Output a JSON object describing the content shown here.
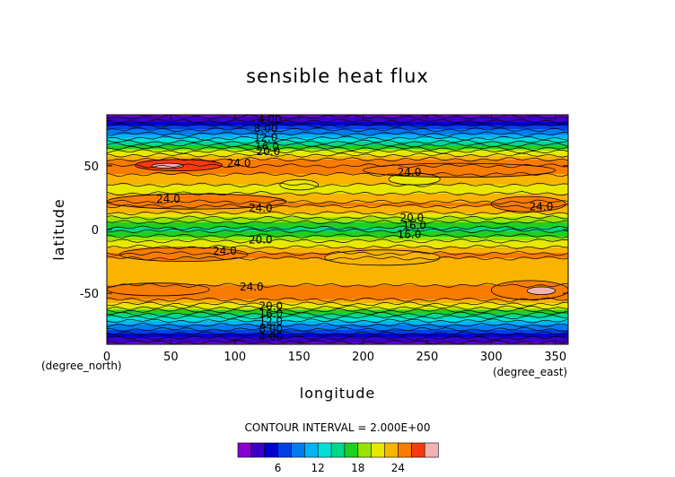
{
  "chart_data": {
    "type": "heatmap",
    "title": "sensible heat flux",
    "xlabel": "longitude",
    "ylabel": "latitude",
    "x_unit": "(degree_east)",
    "y_unit": "(degree_north)",
    "xlim": [
      0,
      360
    ],
    "ylim": [
      -90,
      90
    ],
    "x_ticks": [
      0,
      50,
      100,
      150,
      200,
      250,
      300,
      350
    ],
    "y_ticks": [
      -50,
      0,
      50
    ],
    "contour_interval_text": "CONTOUR INTERVAL = 2.000E+00",
    "colorbar_ticks": [
      6,
      12,
      18,
      24
    ],
    "color_levels": [
      {
        "upper": 2,
        "color": "#8a00d0"
      },
      {
        "upper": 4,
        "color": "#3c00c8"
      },
      {
        "upper": 6,
        "color": "#0000d0"
      },
      {
        "upper": 8,
        "color": "#0040e8"
      },
      {
        "upper": 10,
        "color": "#007cf0"
      },
      {
        "upper": 12,
        "color": "#00b4f4"
      },
      {
        "upper": 14,
        "color": "#00e0d8"
      },
      {
        "upper": 16,
        "color": "#00d88c"
      },
      {
        "upper": 18,
        "color": "#20d020"
      },
      {
        "upper": 20,
        "color": "#98e400"
      },
      {
        "upper": 22,
        "color": "#e8e800"
      },
      {
        "upper": 24,
        "color": "#f8b400"
      },
      {
        "upper": 26,
        "color": "#f87c00"
      },
      {
        "upper": 28,
        "color": "#f83a10"
      },
      {
        "upper": 30,
        "color": "#f2b2b2"
      }
    ],
    "zonal_profile": {
      "lat": [
        -90,
        -85,
        -80,
        -75,
        -70,
        -65,
        -60,
        -55,
        -50,
        -45,
        -40,
        -35,
        -30,
        -25,
        -20,
        -15,
        -10,
        -5,
        0,
        5,
        10,
        15,
        20,
        25,
        30,
        35,
        40,
        45,
        50,
        55,
        60,
        65,
        70,
        75,
        80,
        85,
        90
      ],
      "value": [
        1,
        4,
        7,
        10,
        13,
        17,
        21,
        24,
        25.5,
        24.5,
        22.5,
        22.5,
        23,
        23.5,
        24.5,
        22.5,
        20.5,
        18,
        15.5,
        17.5,
        20.5,
        23,
        24.5,
        23,
        21.5,
        22,
        23,
        24.5,
        26,
        24,
        21,
        17,
        13,
        10,
        7,
        4,
        1
      ]
    },
    "contour_labels": [
      {
        "text": "4.00",
        "lon": 127,
        "lat": 86
      },
      {
        "text": "8.00",
        "lon": 124,
        "lat": 79
      },
      {
        "text": "12.0",
        "lon": 124,
        "lat": 72
      },
      {
        "text": "16.0",
        "lon": 125,
        "lat": 65
      },
      {
        "text": "20.0",
        "lon": 126,
        "lat": 61
      },
      {
        "text": "24.0",
        "lon": 103,
        "lat": 52
      },
      {
        "text": "24.0",
        "lon": 236,
        "lat": 45
      },
      {
        "text": "24.0",
        "lon": 48,
        "lat": 24
      },
      {
        "text": "24.0",
        "lon": 120,
        "lat": 17
      },
      {
        "text": "24.0",
        "lon": 339,
        "lat": 18
      },
      {
        "text": "20.0",
        "lon": 238,
        "lat": 9
      },
      {
        "text": "16.0",
        "lon": 240,
        "lat": 3
      },
      {
        "text": "16.0",
        "lon": 236,
        "lat": -4
      },
      {
        "text": "20.0",
        "lon": 120,
        "lat": -8
      },
      {
        "text": "24.0",
        "lon": 92,
        "lat": -17
      },
      {
        "text": "24.0",
        "lon": 113,
        "lat": -45
      },
      {
        "text": "20.0",
        "lon": 128,
        "lat": -60
      },
      {
        "text": "16.0",
        "lon": 128,
        "lat": -66
      },
      {
        "text": "12.0",
        "lon": 128,
        "lat": -72
      },
      {
        "text": "8.00",
        "lon": 128,
        "lat": -78
      },
      {
        "text": "4.00",
        "lon": 128,
        "lat": -84
      }
    ]
  }
}
